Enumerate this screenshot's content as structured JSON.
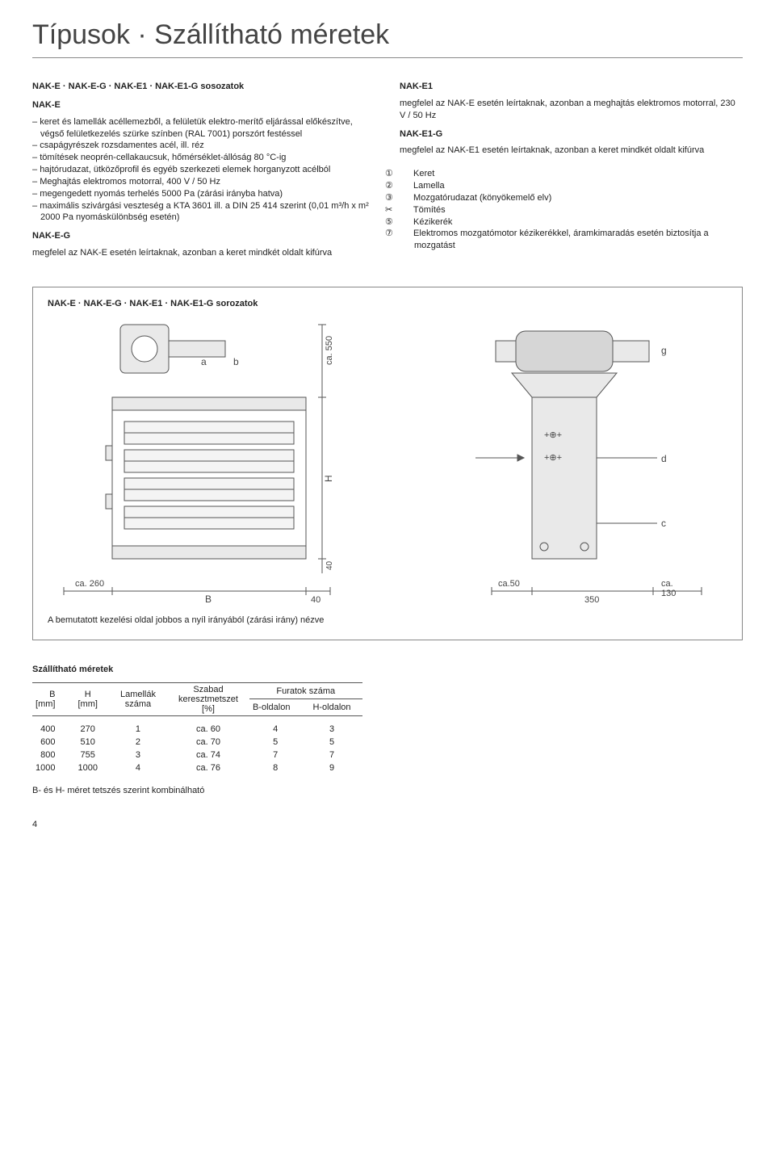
{
  "title": "Típusok · Szállítható méretek",
  "left": {
    "subhead": "NAK-E · NAK-E-G · NAK-E1 · NAK-E1-G sosozatok",
    "nake_head": "NAK-E",
    "nake_bullets": [
      "keret és lamellák acéllemezből, a felületük elektro-merítő eljárással előkészítve, végső felületkezelés szürke színben (RAL 7001) porszórt festéssel",
      "csapágyrészek rozsdamentes acél, ill. réz",
      "tömítések neoprén-cellakaucsuk, hőmérséklet-állóság 80 °C-ig",
      "hajtórudazat, ütközőprofil és egyéb szerkezeti elemek horganyzott acélból",
      "Meghajtás elektromos motorral, 400 V / 50 Hz",
      "megengedett nyomás terhelés 5000 Pa (zárási irányba hatva)",
      "maximális szivárgási veszteség a KTA 3601 ill. a DIN 25 414 szerint (0,01 m³/h x m² 2000 Pa nyomáskülönbség esetén)"
    ],
    "nakeg_head": "NAK-E-G",
    "nakeg_text": "megfelel az NAK-E esetén leírtaknak, azonban a keret mindkét oldalt kifúrva"
  },
  "right": {
    "nake1_head": "NAK-E1",
    "nake1_text": "megfelel az NAK-E esetén leírtaknak, azonban a meghajtás elektromos motorral, 230 V / 50 Hz",
    "nake1g_head": "NAK-E1-G",
    "nake1g_text": "megfelel az NAK-E1 esetén leírtaknak, azonban a keret mindkét oldalt kifúrva",
    "legend": [
      {
        "n": "①",
        "t": "Keret"
      },
      {
        "n": "②",
        "t": "Lamella"
      },
      {
        "n": "③",
        "t": "Mozgatórudazat (könyökemelő elv)"
      },
      {
        "n": "✂",
        "t": "Tömítés"
      },
      {
        "n": "⑤",
        "t": "Kézikerék"
      },
      {
        "n": "⑦",
        "t": "Elektromos mozgatómotor kézikerékkel, áramkimaradás esetén biztosítja a mozgatást"
      }
    ]
  },
  "box": {
    "title": "NAK-E · NAK-E-G · NAK-E1 · NAK-E1-G sorozatok",
    "labels": {
      "a": "a",
      "b": "b",
      "ca550": "ca. 550",
      "H": "H",
      "forty": "40",
      "ca260": "ca. 260",
      "B": "B",
      "forty2": "40",
      "ca50": "ca.50",
      "350": "350",
      "ca130": "ca. 130",
      "g": "g",
      "d": "d",
      "c": "c"
    },
    "caption": "A bemutatott kezelési oldal jobbos a nyíl irányából (zárási irány) nézve"
  },
  "sizes": {
    "head": "Szállítható méretek",
    "cols": {
      "B": "B\n[mm]",
      "H": "H\n[mm]",
      "lam": "Lamellák\nszáma",
      "free": "Szabad\nkeresztmetszet\n[%]",
      "holes": "Furatok száma",
      "bside": "B-oldalon",
      "hside": "H-oldalon"
    },
    "rows": [
      {
        "B": "400",
        "H": "270",
        "lam": "1",
        "free": "ca. 60",
        "bs": "4",
        "hs": "3"
      },
      {
        "B": "600",
        "H": "510",
        "lam": "2",
        "free": "ca. 70",
        "bs": "5",
        "hs": "5"
      },
      {
        "B": "800",
        "H": "755",
        "lam": "3",
        "free": "ca. 74",
        "bs": "7",
        "hs": "7"
      },
      {
        "B": "1000",
        "H": "1000",
        "lam": "4",
        "free": "ca. 76",
        "bs": "8",
        "hs": "9"
      }
    ],
    "note": "B- és H- méret tetszés szerint kombinálható"
  },
  "pagenum": "4",
  "style": {
    "stroke": "#555",
    "fill_light": "#e9e9e9",
    "fill_mid": "#d6d6d6"
  }
}
